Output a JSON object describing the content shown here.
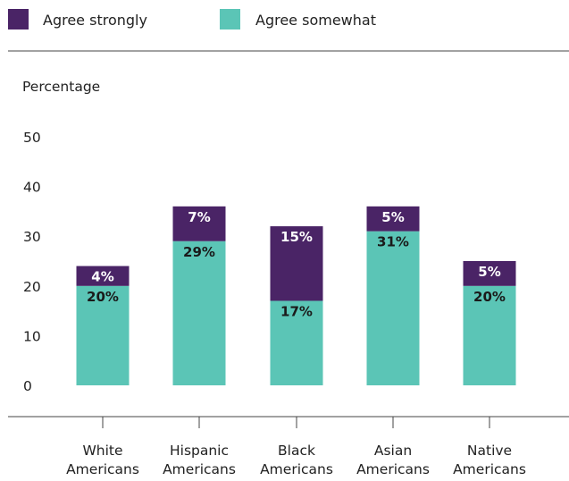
{
  "legend": {
    "items": [
      {
        "label": "Agree strongly",
        "color": "#4a2466"
      },
      {
        "label": "Agree somewhat",
        "color": "#5bc5b6"
      }
    ]
  },
  "chart_data": {
    "type": "bar",
    "stacked": true,
    "ylabel": "Percentage",
    "ylim": [
      0,
      50
    ],
    "yticks": [
      0,
      10,
      20,
      30,
      40,
      50
    ],
    "grid": false,
    "legend_position": "top-left",
    "categories": [
      [
        "White",
        "Americans"
      ],
      [
        "Hispanic",
        "Americans"
      ],
      [
        "Black",
        "Americans"
      ],
      [
        "Asian",
        "Americans"
      ],
      [
        "Native",
        "Americans"
      ]
    ],
    "series": [
      {
        "name": "Agree somewhat",
        "color": "#5bc5b6",
        "values": [
          20,
          29,
          17,
          31,
          20
        ],
        "labels": [
          "20%",
          "29%",
          "17%",
          "31%",
          "20%"
        ],
        "label_color": "#1a1a1a"
      },
      {
        "name": "Agree strongly",
        "color": "#4a2466",
        "values": [
          4,
          7,
          15,
          5,
          5
        ],
        "labels": [
          "4%",
          "7%",
          "15%",
          "5%",
          "5%"
        ],
        "label_color": "#ffffff"
      }
    ]
  }
}
